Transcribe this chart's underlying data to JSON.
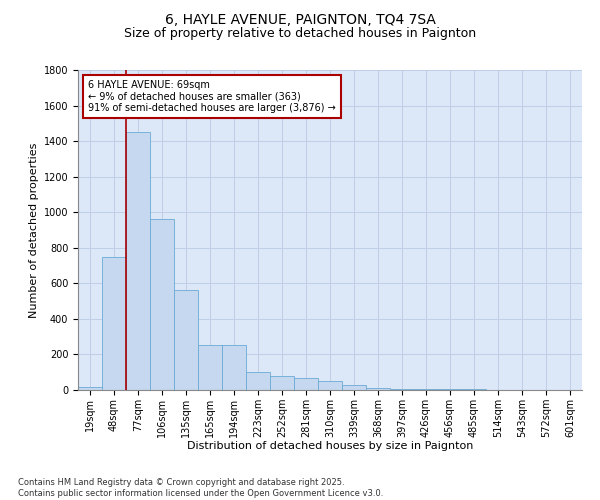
{
  "title": "6, HAYLE AVENUE, PAIGNTON, TQ4 7SA",
  "subtitle": "Size of property relative to detached houses in Paignton",
  "xlabel": "Distribution of detached houses by size in Paignton",
  "ylabel": "Number of detached properties",
  "footnote1": "Contains HM Land Registry data © Crown copyright and database right 2025.",
  "footnote2": "Contains public sector information licensed under the Open Government Licence v3.0.",
  "annotation_title": "6 HAYLE AVENUE: 69sqm",
  "annotation_line1": "← 9% of detached houses are smaller (363)",
  "annotation_line2": "91% of semi-detached houses are larger (3,876) →",
  "categories": [
    "19sqm",
    "48sqm",
    "77sqm",
    "106sqm",
    "135sqm",
    "165sqm",
    "194sqm",
    "223sqm",
    "252sqm",
    "281sqm",
    "310sqm",
    "339sqm",
    "368sqm",
    "397sqm",
    "426sqm",
    "456sqm",
    "485sqm",
    "514sqm",
    "543sqm",
    "572sqm",
    "601sqm"
  ],
  "bar_heights": [
    15,
    750,
    1450,
    960,
    560,
    255,
    255,
    100,
    80,
    70,
    50,
    30,
    10,
    8,
    5,
    5,
    3,
    2,
    2,
    2,
    2
  ],
  "bar_color": "#c5d8f0",
  "bar_edge_color": "#6aaad4",
  "vline_color": "#aa0000",
  "vline_x": 1.5,
  "ylim": [
    0,
    1800
  ],
  "yticks": [
    0,
    200,
    400,
    600,
    800,
    1000,
    1200,
    1400,
    1600,
    1800
  ],
  "grid_color": "#c0cfe8",
  "background_color": "#dce8f8",
  "annotation_box_color": "#ffffff",
  "annotation_box_edge": "#aa0000",
  "title_fontsize": 10,
  "subtitle_fontsize": 9,
  "axis_label_fontsize": 8,
  "tick_fontsize": 7,
  "annotation_fontsize": 7,
  "footnote_fontsize": 6
}
